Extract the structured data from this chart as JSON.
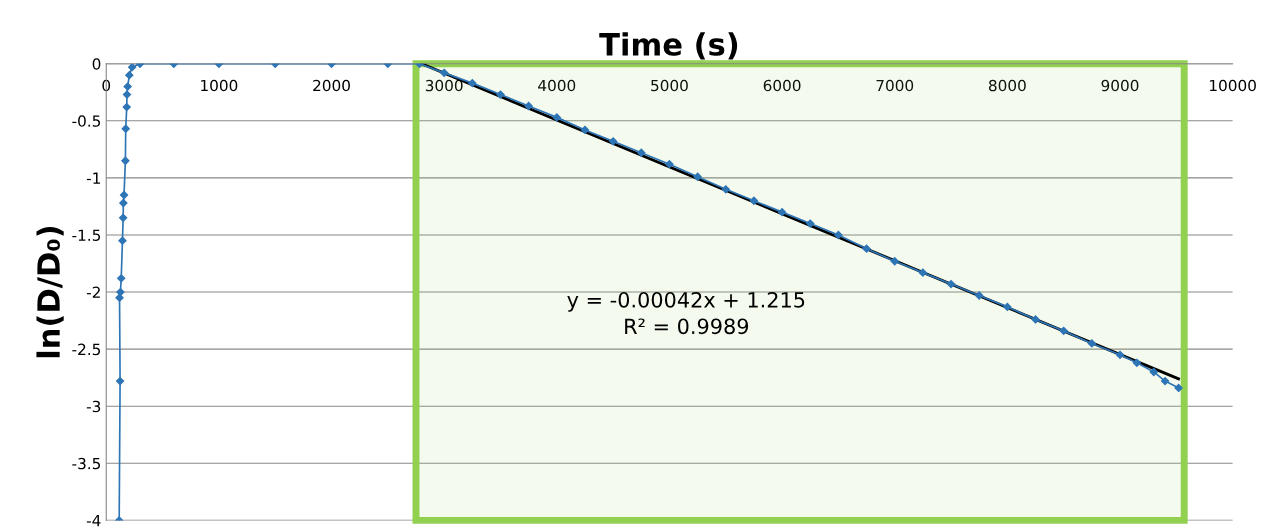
{
  "chart_data": {
    "type": "line",
    "xlabel": "Time (s)",
    "ylabel": "ln(D/D₀)",
    "xlim": [
      0,
      10000
    ],
    "xticks": [
      0,
      1000,
      2000,
      3000,
      4000,
      5000,
      6000,
      7000,
      8000,
      9000,
      10000
    ],
    "ylim": [
      -4,
      0
    ],
    "yticks": [
      0,
      -0.5,
      -1,
      -1.5,
      -2,
      -2.5,
      -3,
      -3.5,
      -4
    ],
    "grid": "y",
    "marker": "diamond",
    "series": [
      {
        "color": "#2e75b6",
        "x": [
          115,
          123,
          118,
          126,
          133,
          144,
          150,
          152,
          158,
          170,
          173,
          182,
          184,
          190,
          205,
          230,
          300,
          600,
          1000,
          1500,
          2000,
          2500,
          2780,
          3000,
          3250,
          3500,
          3750,
          4000,
          4250,
          4500,
          4750,
          5000,
          5250,
          5500,
          5750,
          6000,
          6250,
          6500,
          6750,
          7000,
          7250,
          7500,
          7750,
          8000,
          8250,
          8500,
          8750,
          9000,
          9150,
          9300,
          9400,
          9520
        ],
        "values": [
          -4,
          -2.78,
          -2.05,
          -2.0,
          -1.88,
          -1.55,
          -1.35,
          -1.22,
          -1.15,
          -0.85,
          -0.57,
          -0.38,
          -0.27,
          -0.2,
          -0.1,
          -0.03,
          0,
          0,
          0,
          0,
          0,
          0,
          0,
          -0.08,
          -0.17,
          -0.27,
          -0.37,
          -0.47,
          -0.58,
          -0.68,
          -0.78,
          -0.88,
          -0.99,
          -1.1,
          -1.2,
          -1.3,
          -1.4,
          -1.5,
          -1.62,
          -1.73,
          -1.83,
          -1.93,
          -2.03,
          -2.13,
          -2.24,
          -2.34,
          -2.45,
          -2.55,
          -2.62,
          -2.7,
          -2.78,
          -2.84
        ]
      },
      {
        "type": "line",
        "color": "#000000",
        "marker": "none",
        "x": [
          2800,
          9520
        ],
        "values": [
          0,
          -2.76
        ]
      }
    ],
    "bands": [
      {
        "axis": "x",
        "from": 2750,
        "to": 9570,
        "color": "#92d050"
      }
    ],
    "annotations": [
      "y = -0.00042x + 1.215\nR² = 0.9989"
    ]
  }
}
